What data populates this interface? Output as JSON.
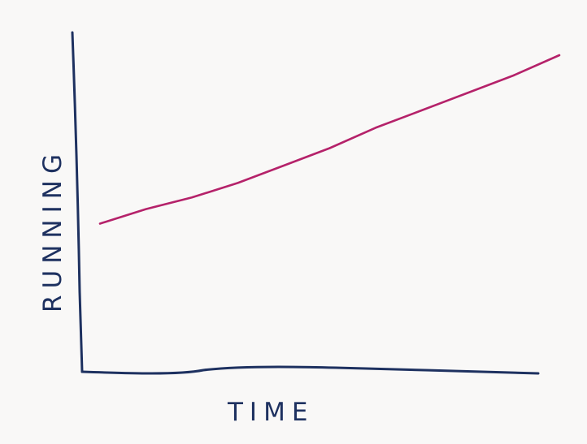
{
  "chart_data": {
    "type": "line",
    "title": "",
    "xlabel": "TIME",
    "ylabel": "RUNNING",
    "xlim": [
      0,
      10
    ],
    "ylim": [
      0,
      10
    ],
    "grid": false,
    "legend": "none",
    "series": [
      {
        "color": "#b5226a",
        "x": [
          0,
          1,
          2,
          3,
          4,
          5,
          6,
          7,
          8,
          9,
          10
        ],
        "y": [
          5.1,
          5.6,
          6.0,
          6.5,
          7.1,
          7.7,
          8.4,
          9.0,
          9.6,
          10.2,
          10.9
        ]
      }
    ]
  },
  "colors": {
    "axis": "#1e3160",
    "line": "#b5226a",
    "background": "#f9f8f7"
  }
}
